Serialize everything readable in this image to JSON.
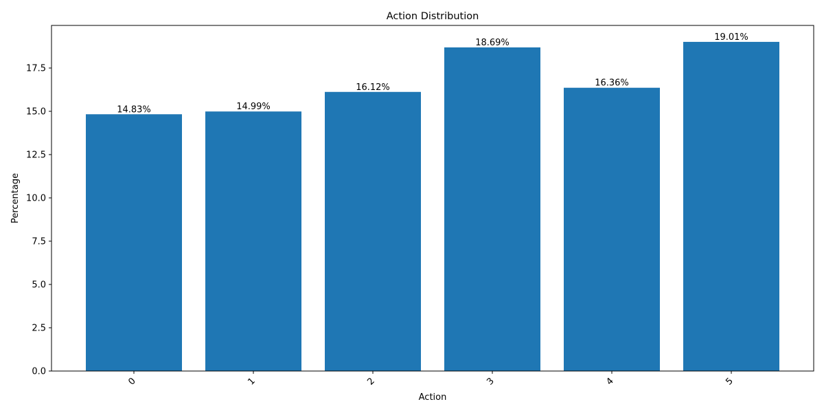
{
  "chart_data": {
    "type": "bar",
    "title": "Action Distribution",
    "xlabel": "Action",
    "ylabel": "Percentage",
    "categories": [
      "0",
      "1",
      "2",
      "3",
      "4",
      "5"
    ],
    "values": [
      14.83,
      14.99,
      16.12,
      18.69,
      16.36,
      19.01
    ],
    "data_labels": [
      "14.83%",
      "14.99%",
      "16.12%",
      "18.69%",
      "16.36%",
      "19.01%"
    ],
    "ylim": [
      0,
      19.96
    ],
    "yticks": [
      0.0,
      2.5,
      5.0,
      7.5,
      10.0,
      12.5,
      15.0,
      17.5
    ],
    "ytick_labels": [
      "0.0",
      "2.5",
      "5.0",
      "7.5",
      "10.0",
      "12.5",
      "15.0",
      "17.5"
    ],
    "xtick_rotation": 45,
    "grid": false,
    "bar_color": "#1f77b4"
  }
}
